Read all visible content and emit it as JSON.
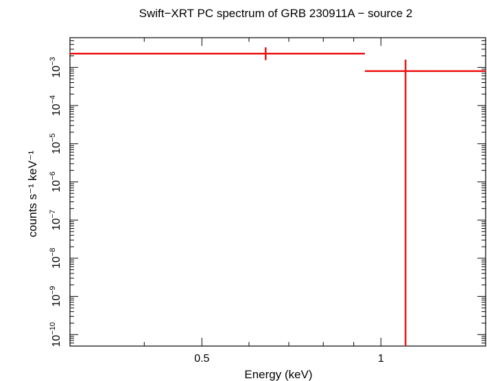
{
  "chart_data": {
    "type": "scatter",
    "title": "Swift−XRT PC spectrum of GRB 230911A − source 2",
    "xlabel": "Energy (keV)",
    "ylabel": "counts s⁻¹ keV⁻¹",
    "x_scale": "log",
    "y_scale": "log",
    "xlim": [
      0.3,
      1.5
    ],
    "ylim": [
      5e-11,
      0.006
    ],
    "x_tick_labels": [
      "0.5",
      "1"
    ],
    "y_tick_labels": [
      {
        "base": "10",
        "exp": "−3"
      },
      {
        "base": "10",
        "exp": "−4"
      },
      {
        "base": "10",
        "exp": "−5"
      },
      {
        "base": "10",
        "exp": "−6"
      },
      {
        "base": "10",
        "exp": "−7"
      },
      {
        "base": "10",
        "exp": "−8"
      },
      {
        "base": "10",
        "exp": "−9"
      },
      {
        "base": "10",
        "exp": "−10"
      }
    ],
    "series": [
      {
        "color": "#ee1111",
        "points": [
          {
            "x": 0.64,
            "xlo": 0.3,
            "xhi": 0.94,
            "y": 0.0023,
            "ylo": 0.00155,
            "yhi": 0.00335
          },
          {
            "x": 1.1,
            "xlo": 0.94,
            "xhi": 1.5,
            "y": 0.0008,
            "ylo": 5e-11,
            "yhi": 0.0016
          }
        ]
      }
    ]
  }
}
